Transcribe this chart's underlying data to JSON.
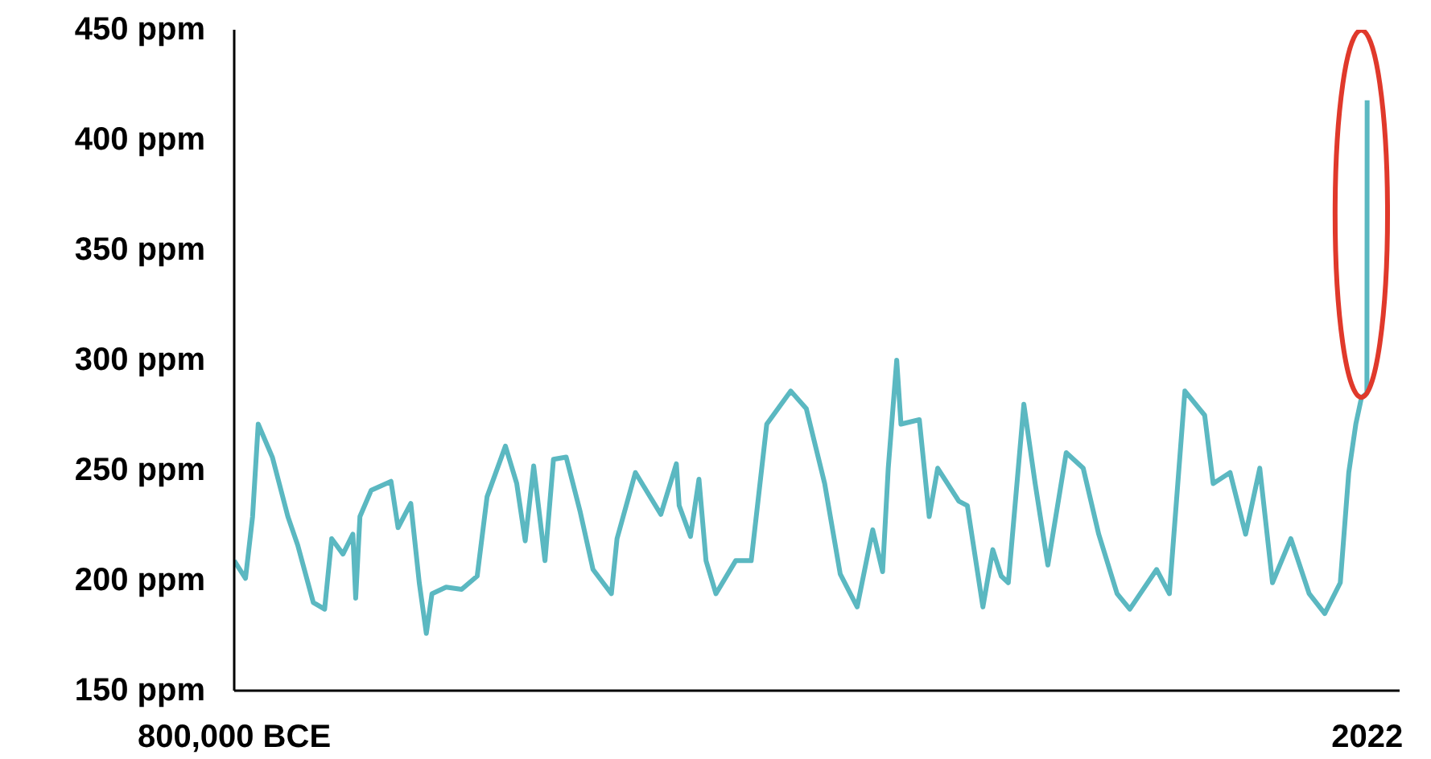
{
  "chart_data": {
    "type": "line",
    "x": [
      -800000,
      -792000,
      -787000,
      -783000,
      -773000,
      -762000,
      -755000,
      -744000,
      -736000,
      -731000,
      -723000,
      -716000,
      -714000,
      -711000,
      -703000,
      -689000,
      -684000,
      -675000,
      -669000,
      -664000,
      -660000,
      -650000,
      -639000,
      -628000,
      -621000,
      -608000,
      -600000,
      -594000,
      -588000,
      -580000,
      -574000,
      -565000,
      -555000,
      -546000,
      -533000,
      -529000,
      -516000,
      -498000,
      -487000,
      -485000,
      -477000,
      -471000,
      -466000,
      -459000,
      -445000,
      -434000,
      -423000,
      -406000,
      -395000,
      -382000,
      -371000,
      -359000,
      -348000,
      -341000,
      -337000,
      -331000,
      -328000,
      -315000,
      -308000,
      -302000,
      -287000,
      -281000,
      -270000,
      -263000,
      -257000,
      -252000,
      -241000,
      -233000,
      -224000,
      -211000,
      -199000,
      -188000,
      -175000,
      -166000,
      -147000,
      -138000,
      -127000,
      -113000,
      -107000,
      -95000,
      -84000,
      -74000,
      -65000,
      -52000,
      -39000,
      -28000,
      -17000,
      -11000,
      -6000,
      -2000,
      1850,
      2022
    ],
    "series": [
      {
        "color": "#5bb8c1",
        "values": [
          209,
          201,
          229,
          271,
          256,
          229,
          216,
          190,
          187,
          219,
          212,
          221,
          192,
          229,
          241,
          245,
          224,
          235,
          199,
          176,
          194,
          197,
          196,
          202,
          238,
          261,
          244,
          218,
          252,
          209,
          255,
          256,
          231,
          205,
          194,
          219,
          249,
          230,
          253,
          234,
          220,
          246,
          209,
          194,
          209,
          209,
          271,
          286,
          278,
          244,
          203,
          188,
          223,
          204,
          251,
          300,
          271,
          273,
          229,
          251,
          236,
          234,
          188,
          214,
          202,
          199,
          280,
          244,
          207,
          258,
          251,
          221,
          194,
          187,
          205,
          194,
          286,
          275,
          244,
          249,
          221,
          251,
          199,
          219,
          194,
          185,
          199,
          249,
          271,
          283,
          285,
          418
        ]
      }
    ],
    "xlim": [
      -800000,
      25000
    ],
    "xticks": [
      {
        "value": -800000,
        "label": "800,000 BCE"
      },
      {
        "value": 2022,
        "label": "2022"
      }
    ],
    "ylim": [
      150,
      450
    ],
    "yticks": [
      {
        "value": 150,
        "label": "150 ppm"
      },
      {
        "value": 200,
        "label": "200 ppm"
      },
      {
        "value": 250,
        "label": "250 ppm"
      },
      {
        "value": 300,
        "label": "300 ppm"
      },
      {
        "value": 350,
        "label": "350 ppm"
      },
      {
        "value": 400,
        "label": "400 ppm"
      },
      {
        "value": 450,
        "label": "450 ppm"
      }
    ],
    "grid": false,
    "marker": "none",
    "line_style": "solid"
  }
}
